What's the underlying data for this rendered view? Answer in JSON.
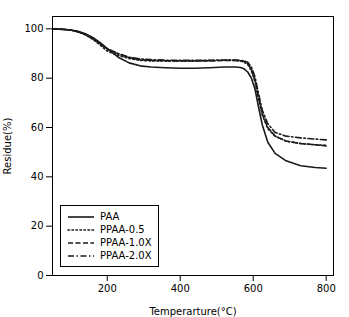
{
  "chart_data": {
    "type": "line",
    "title": "",
    "xlabel": "Temperarture(°C)",
    "ylabel": "Residue(%)",
    "x": [
      50,
      80,
      100,
      120,
      140,
      160,
      180,
      200,
      230,
      260,
      290,
      320,
      360,
      400,
      440,
      480,
      520,
      550,
      565,
      575,
      585,
      595,
      605,
      615,
      625,
      640,
      660,
      690,
      730,
      770,
      800
    ],
    "series": [
      {
        "name": "PAA",
        "color": "#1a1a1a",
        "line_style": "solid",
        "values": [
          100,
          99.8,
          99.5,
          99.0,
          98.0,
          96.5,
          94.5,
          92.0,
          88.5,
          86.2,
          85.0,
          84.5,
          84.2,
          84.0,
          84.0,
          84.2,
          84.5,
          84.5,
          84.3,
          83.8,
          82.5,
          80.0,
          75.5,
          68.0,
          61.0,
          54.0,
          49.5,
          46.5,
          44.5,
          43.8,
          43.5
        ]
      },
      {
        "name": "PPAA-0.5",
        "color": "#1a1a1a",
        "line_style": "dotted",
        "values": [
          100,
          99.8,
          99.5,
          98.8,
          97.5,
          95.8,
          93.5,
          91.0,
          89.2,
          88.0,
          87.2,
          87.0,
          87.0,
          87.0,
          87.0,
          87.2,
          87.3,
          87.2,
          87.0,
          86.5,
          85.5,
          83.0,
          78.5,
          71.5,
          65.0,
          59.5,
          56.5,
          54.5,
          53.5,
          53.0,
          52.8
        ]
      },
      {
        "name": "PPAA-1.0X",
        "color": "#1a1a1a",
        "line_style": "dashed",
        "values": [
          100,
          99.8,
          99.5,
          98.8,
          97.8,
          96.0,
          94.0,
          91.8,
          89.8,
          88.3,
          87.5,
          87.2,
          87.0,
          87.0,
          87.0,
          87.0,
          87.2,
          87.2,
          87.0,
          86.8,
          86.0,
          83.5,
          79.0,
          72.0,
          65.5,
          60.0,
          56.5,
          54.5,
          53.5,
          53.0,
          52.5
        ]
      },
      {
        "name": "PPAA-2.0X",
        "color": "#1a1a1a",
        "line_style": "dashdot",
        "values": [
          100,
          99.8,
          99.5,
          98.8,
          97.8,
          96.2,
          94.0,
          92.0,
          90.0,
          88.5,
          87.8,
          87.5,
          87.3,
          87.2,
          87.2,
          87.2,
          87.3,
          87.3,
          87.2,
          87.0,
          86.5,
          84.5,
          80.5,
          73.5,
          67.0,
          61.5,
          58.0,
          56.5,
          55.8,
          55.3,
          55.0
        ]
      }
    ],
    "xlim": [
      50,
      820
    ],
    "ylim": [
      0,
      105
    ],
    "xticks": [
      200,
      400,
      600,
      800
    ],
    "yticks": [
      0,
      20,
      40,
      60,
      80,
      100
    ],
    "legend": "lower left"
  }
}
